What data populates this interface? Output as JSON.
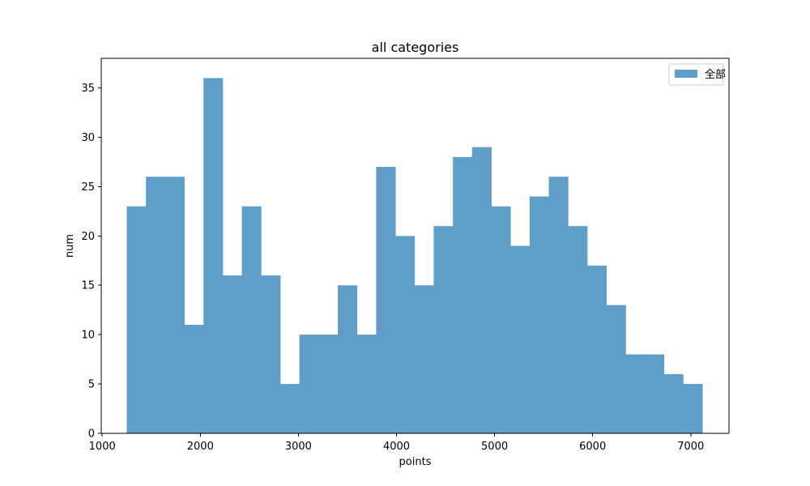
{
  "chart_data": {
    "type": "bar",
    "title": "all categories",
    "xlabel": "points",
    "ylabel": "num",
    "xlim": [
      990,
      7390
    ],
    "ylim": [
      0,
      38
    ],
    "x_ticks": [
      "1000",
      "2000",
      "3000",
      "4000",
      "5000",
      "6000",
      "7000"
    ],
    "y_ticks": [
      "0",
      "5",
      "10",
      "15",
      "20",
      "25",
      "30",
      "35"
    ],
    "grid": false,
    "legend_position": "top-right",
    "color": "#5f9ec9",
    "bin_start": 1250,
    "bin_width": 195.6,
    "series": [
      {
        "name": "全部",
        "values": [
          23,
          26,
          26,
          11,
          36,
          16,
          23,
          16,
          5,
          10,
          10,
          15,
          10,
          27,
          20,
          15,
          21,
          28,
          29,
          23,
          19,
          24,
          26,
          21,
          17,
          13,
          8,
          8,
          6,
          5
        ]
      }
    ]
  }
}
